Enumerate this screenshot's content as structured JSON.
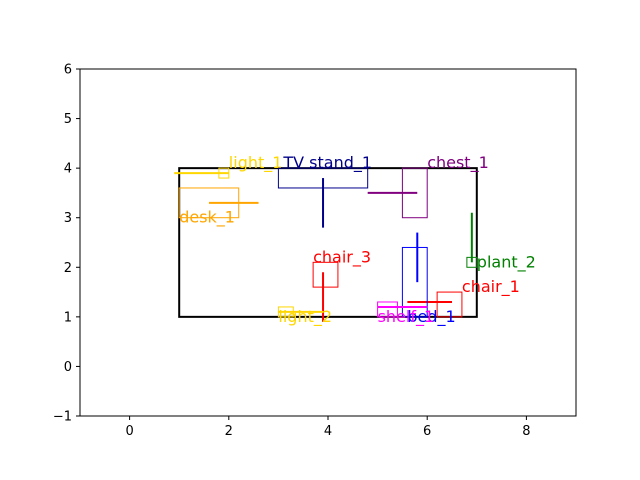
{
  "chart_data": {
    "type": "scatter",
    "title": "",
    "xlabel": "",
    "ylabel": "",
    "xlim": [
      -1,
      9
    ],
    "ylim": [
      -1,
      6
    ],
    "xticks": [
      "0",
      "2",
      "4",
      "6",
      "8"
    ],
    "yticks": [
      "−1",
      "0",
      "1",
      "2",
      "3",
      "4",
      "5",
      "6"
    ],
    "grid": false,
    "room": {
      "x0": 1,
      "y0": 1,
      "x1": 7,
      "y1": 4,
      "color": "#000000"
    },
    "objects": [
      {
        "label": "light_1",
        "color": "#ffd700",
        "box": [
          1.8,
          3.8,
          2.0,
          4.0
        ],
        "line": [
          [
            0.9,
            3.9
          ],
          [
            2.0,
            3.9
          ]
        ],
        "label_at": [
          2.0,
          4.0
        ]
      },
      {
        "label": "TV stand_1",
        "color": "#00008b",
        "box": [
          3.0,
          3.6,
          4.8,
          4.0
        ],
        "line": [
          [
            3.9,
            2.8
          ],
          [
            3.9,
            3.8
          ]
        ],
        "label_at": [
          3.1,
          4.0
        ]
      },
      {
        "label": "chest_1",
        "color": "#800080",
        "box": [
          5.5,
          3.0,
          6.0,
          4.0
        ],
        "line": [
          [
            4.8,
            3.5
          ],
          [
            5.8,
            3.5
          ]
        ],
        "label_at": [
          6.0,
          4.0
        ]
      },
      {
        "label": "desk_1",
        "color": "#ffa500",
        "box": [
          1.0,
          3.0,
          2.2,
          3.6
        ],
        "line": [
          [
            1.6,
            3.3
          ],
          [
            2.6,
            3.3
          ]
        ],
        "label_at": [
          1.0,
          2.9
        ]
      },
      {
        "label": "plant_2",
        "color": "#008000",
        "box": [
          6.8,
          2.0,
          7.0,
          2.2
        ],
        "line": [
          [
            6.9,
            2.1
          ],
          [
            6.9,
            3.1
          ]
        ],
        "label_at": [
          7.0,
          2.0
        ]
      },
      {
        "label": "chair_3",
        "color": "#ff0000",
        "box": [
          3.7,
          1.6,
          4.2,
          2.1
        ],
        "line": [
          [
            3.9,
            0.9
          ],
          [
            3.9,
            1.9
          ]
        ],
        "label_at": [
          3.7,
          2.1
        ]
      },
      {
        "label": "chair_1",
        "color": "#ff0000",
        "box": [
          6.2,
          1.0,
          6.7,
          1.5
        ],
        "line": [
          [
            5.6,
            1.3
          ],
          [
            6.5,
            1.3
          ]
        ],
        "label_at": [
          6.7,
          1.5
        ]
      },
      {
        "label": "bed_1",
        "color": "#0000ff",
        "box": [
          5.5,
          1.0,
          6.0,
          2.4
        ],
        "line": [
          [
            5.8,
            1.7
          ],
          [
            5.8,
            2.7
          ]
        ],
        "label_at": [
          5.6,
          0.9
        ]
      },
      {
        "label": "shelf_1",
        "color": "#ff00ff",
        "box": [
          5.0,
          1.0,
          5.4,
          1.3
        ],
        "line": [
          [
            5.0,
            1.2
          ],
          [
            6.0,
            1.2
          ]
        ],
        "label_at": [
          5.0,
          0.9
        ]
      },
      {
        "label": "light_2",
        "color": "#ffd700",
        "box": [
          3.0,
          1.0,
          3.3,
          1.2
        ],
        "line": [
          [
            3.0,
            1.1
          ],
          [
            3.9,
            1.1
          ]
        ],
        "label_at": [
          3.0,
          0.9
        ]
      }
    ]
  }
}
